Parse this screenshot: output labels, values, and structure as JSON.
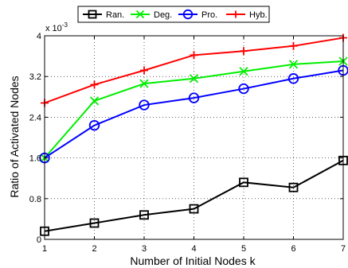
{
  "chart_data": {
    "type": "line",
    "title": "",
    "xlabel": "Number of Initial Nodes k",
    "ylabel": "Ratio of Activated Nodes",
    "scale_note": "x 10",
    "scale_exponent": "-3",
    "x": [
      1,
      2,
      3,
      4,
      5,
      6,
      7
    ],
    "xlim": [
      1,
      7
    ],
    "ylim": [
      0,
      4
    ],
    "xticks": [
      "1",
      "2",
      "3",
      "4",
      "5",
      "6",
      "7"
    ],
    "yticks": [
      {
        "value": 0,
        "label": "0"
      },
      {
        "value": 0.8,
        "label": "0.8"
      },
      {
        "value": 1.6,
        "label": "1.6"
      },
      {
        "value": 2.4,
        "label": "2.4"
      },
      {
        "value": 3.2,
        "label": "3.2"
      },
      {
        "value": 4,
        "label": "4"
      }
    ],
    "grid": true,
    "legend_position": "top",
    "series": [
      {
        "name": "Ran.",
        "color": "#000000",
        "marker": "square",
        "values": [
          0.16,
          0.32,
          0.48,
          0.6,
          1.12,
          1.02,
          1.55
        ]
      },
      {
        "name": "Deg.",
        "color": "#00ee00",
        "marker": "x",
        "values": [
          1.6,
          2.72,
          3.06,
          3.16,
          3.3,
          3.44,
          3.5
        ]
      },
      {
        "name": "Pro.",
        "color": "#0000ff",
        "marker": "circle",
        "values": [
          1.6,
          2.24,
          2.64,
          2.78,
          2.96,
          3.16,
          3.32
        ]
      },
      {
        "name": "Hyb.",
        "color": "#ff0000",
        "marker": "plus",
        "values": [
          2.68,
          3.04,
          3.32,
          3.62,
          3.7,
          3.8,
          3.96
        ]
      }
    ]
  }
}
